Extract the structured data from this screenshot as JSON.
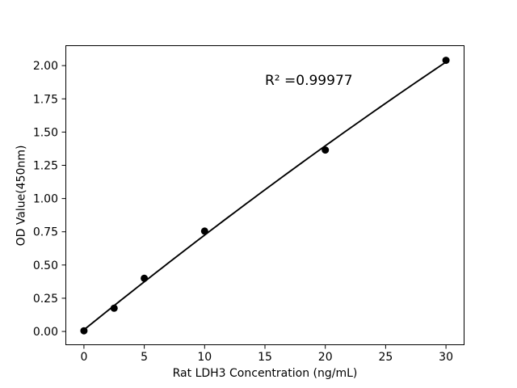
{
  "chart_data": {
    "type": "scatter",
    "title": "",
    "xlabel": "Rat LDH3 Concentration (ng/mL)",
    "ylabel": "OD Value(450nm)",
    "annotation": "R² =0.99977",
    "r_squared": 0.99977,
    "x": [
      0,
      2.5,
      5,
      10,
      20,
      30
    ],
    "y": [
      0.005,
      0.175,
      0.4,
      0.755,
      1.365,
      2.04
    ],
    "fit": {
      "type": "quadratic",
      "coefficients": {
        "a": -0.000206,
        "b": 0.07333,
        "c": 0.0124
      },
      "x_start": 0,
      "x_end": 30
    },
    "xticks": [
      0,
      5,
      10,
      15,
      20,
      25,
      30
    ],
    "yticks": [
      "0.00",
      "0.25",
      "0.50",
      "0.75",
      "1.00",
      "1.25",
      "1.50",
      "1.75",
      "2.00"
    ],
    "xlim": [
      -1.5,
      31.5
    ],
    "ylim": [
      -0.1,
      2.15
    ],
    "grid": false,
    "legend_position": "none",
    "colors": {
      "marker": "#000000",
      "line": "#000000",
      "axis": "#000000",
      "text": "#000000",
      "background": "#ffffff"
    }
  }
}
